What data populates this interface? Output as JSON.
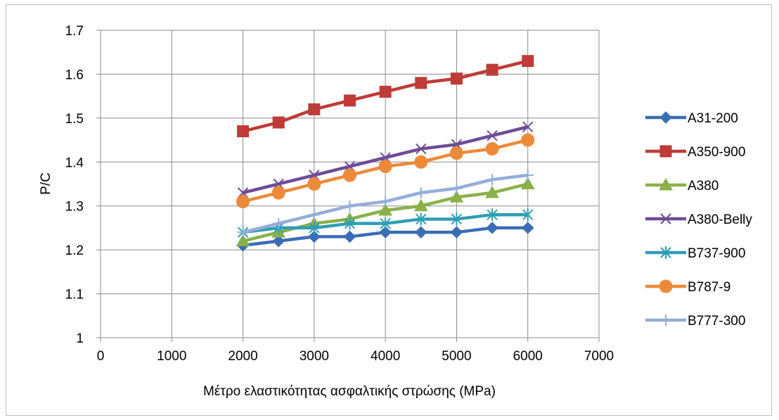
{
  "chart_data": {
    "type": "line",
    "xlabel": "Μέτρο ελαστικότητας ασφαλτικής στρώσης (MPa)",
    "ylabel": "P/C",
    "xlim": [
      0,
      7000
    ],
    "ylim": [
      1,
      1.7
    ],
    "x_ticks": [
      "0",
      "1000",
      "2000",
      "3000",
      "4000",
      "5000",
      "6000",
      "7000"
    ],
    "y_ticks": [
      "1",
      "1.1",
      "1.2",
      "1.3",
      "1.4",
      "1.5",
      "1.6",
      "1.7"
    ],
    "grid": true,
    "legend_position": "right",
    "x": [
      2000,
      2500,
      3000,
      3500,
      4000,
      4500,
      5000,
      5500,
      6000
    ],
    "series": [
      {
        "name": "A31-200",
        "color": "#3a6db5",
        "marker": "diamond",
        "values": [
          1.21,
          1.22,
          1.23,
          1.23,
          1.24,
          1.24,
          1.24,
          1.25,
          1.25
        ]
      },
      {
        "name": "A350-900",
        "color": "#be3b37",
        "marker": "square",
        "values": [
          1.47,
          1.49,
          1.52,
          1.54,
          1.56,
          1.58,
          1.59,
          1.61,
          1.63
        ]
      },
      {
        "name": "A380",
        "color": "#8bb04a",
        "marker": "triangle",
        "values": [
          1.22,
          1.24,
          1.26,
          1.27,
          1.29,
          1.3,
          1.32,
          1.33,
          1.35
        ]
      },
      {
        "name": "A380-Belly",
        "color": "#6e4c96",
        "marker": "x",
        "values": [
          1.33,
          1.35,
          1.37,
          1.39,
          1.41,
          1.43,
          1.44,
          1.46,
          1.48
        ]
      },
      {
        "name": "B737-900",
        "color": "#2f9eb4",
        "marker": "star",
        "values": [
          1.24,
          1.25,
          1.25,
          1.26,
          1.26,
          1.27,
          1.27,
          1.28,
          1.28
        ]
      },
      {
        "name": "B787-9",
        "color": "#ed8a3a",
        "marker": "circle",
        "values": [
          1.31,
          1.33,
          1.35,
          1.37,
          1.39,
          1.4,
          1.42,
          1.43,
          1.45
        ]
      },
      {
        "name": "B777-300",
        "color": "#94aed8",
        "marker": "plus",
        "values": [
          1.24,
          1.26,
          1.28,
          1.3,
          1.31,
          1.33,
          1.34,
          1.36,
          1.37
        ]
      }
    ]
  }
}
